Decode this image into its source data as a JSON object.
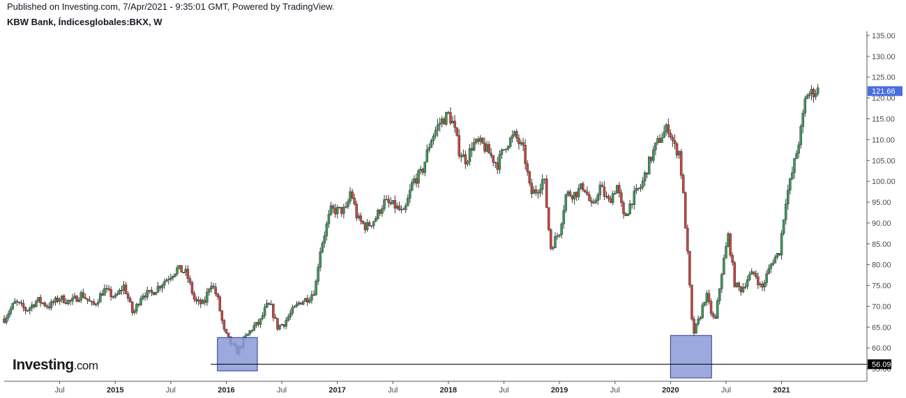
{
  "header": {
    "published": "Published on Investing.com, 7/Apr/2021 - 9:35:01 GMT, Powered by TradingView.",
    "symbol": "KBW Bank, Índicesglobales:BKX, W"
  },
  "logo": {
    "brand": "Investing",
    "domain": ".com"
  },
  "colors": {
    "up": "#3a9a5b",
    "down": "#c9463d",
    "box_fill": "#8a9ad8",
    "box_stroke": "#2b3a8c",
    "last_badge": "#4a6ee0",
    "level_badge": "#000000"
  },
  "chart_data": {
    "type": "candlestick",
    "title": "KBW Bank, Índicesglobales:BKX, W",
    "ylim": [
      52,
      136
    ],
    "y_ticks": [
      "135.00",
      "130.00",
      "125.00",
      "120.00",
      "115.00",
      "110.00",
      "105.00",
      "100.00",
      "95.00",
      "90.00",
      "85.00",
      "80.00",
      "75.00",
      "70.00",
      "65.00",
      "60.00",
      "55.00"
    ],
    "x_ticks": [
      {
        "label": "Jul",
        "t": 2014.5,
        "year": false
      },
      {
        "label": "2015",
        "t": 2015.0,
        "year": true
      },
      {
        "label": "Jul",
        "t": 2015.5,
        "year": false
      },
      {
        "label": "2016",
        "t": 2016.0,
        "year": true
      },
      {
        "label": "Jul",
        "t": 2016.5,
        "year": false
      },
      {
        "label": "2017",
        "t": 2017.0,
        "year": true
      },
      {
        "label": "Jul",
        "t": 2017.5,
        "year": false
      },
      {
        "label": "2018",
        "t": 2018.0,
        "year": true
      },
      {
        "label": "Jul",
        "t": 2018.5,
        "year": false
      },
      {
        "label": "2019",
        "t": 2019.0,
        "year": true
      },
      {
        "label": "Jul",
        "t": 2019.5,
        "year": false
      },
      {
        "label": "2020",
        "t": 2020.0,
        "year": true
      },
      {
        "label": "Jul",
        "t": 2020.5,
        "year": false
      },
      {
        "label": "2021",
        "t": 2021.0,
        "year": true
      }
    ],
    "xlim": [
      2014.0,
      2021.75
    ],
    "series_closes": [
      [
        2014.0,
        67
      ],
      [
        2014.1,
        71
      ],
      [
        2014.2,
        69
      ],
      [
        2014.3,
        71.5
      ],
      [
        2014.4,
        70
      ],
      [
        2014.5,
        72
      ],
      [
        2014.6,
        71
      ],
      [
        2014.7,
        73
      ],
      [
        2014.8,
        70
      ],
      [
        2014.9,
        74
      ],
      [
        2015.0,
        72
      ],
      [
        2015.08,
        75
      ],
      [
        2015.16,
        68
      ],
      [
        2015.24,
        73
      ],
      [
        2015.32,
        73
      ],
      [
        2015.4,
        75
      ],
      [
        2015.48,
        77
      ],
      [
        2015.56,
        79
      ],
      [
        2015.64,
        78
      ],
      [
        2015.72,
        71
      ],
      [
        2015.8,
        70.5
      ],
      [
        2015.86,
        76
      ],
      [
        2015.92,
        72
      ],
      [
        2015.98,
        64
      ],
      [
        2016.04,
        61
      ],
      [
        2016.1,
        59
      ],
      [
        2016.16,
        62
      ],
      [
        2016.24,
        65
      ],
      [
        2016.3,
        66
      ],
      [
        2016.36,
        70
      ],
      [
        2016.4,
        70
      ],
      [
        2016.46,
        65
      ],
      [
        2016.52,
        66
      ],
      [
        2016.6,
        69
      ],
      [
        2016.66,
        71
      ],
      [
        2016.74,
        72
      ],
      [
        2016.8,
        74
      ],
      [
        2016.84,
        83
      ],
      [
        2016.88,
        87
      ],
      [
        2016.94,
        93
      ],
      [
        2017.0,
        93
      ],
      [
        2017.08,
        93
      ],
      [
        2017.12,
        98
      ],
      [
        2017.18,
        91
      ],
      [
        2017.26,
        89
      ],
      [
        2017.34,
        91
      ],
      [
        2017.42,
        95
      ],
      [
        2017.52,
        94
      ],
      [
        2017.6,
        92
      ],
      [
        2017.68,
        100
      ],
      [
        2017.76,
        102
      ],
      [
        2017.84,
        110
      ],
      [
        2017.92,
        114
      ],
      [
        2018.0,
        116
      ],
      [
        2018.04,
        114
      ],
      [
        2018.1,
        107
      ],
      [
        2018.16,
        105
      ],
      [
        2018.22,
        109
      ],
      [
        2018.3,
        109
      ],
      [
        2018.36,
        107
      ],
      [
        2018.44,
        104
      ],
      [
        2018.52,
        109
      ],
      [
        2018.6,
        111
      ],
      [
        2018.68,
        107
      ],
      [
        2018.74,
        97
      ],
      [
        2018.8,
        98
      ],
      [
        2018.86,
        101
      ],
      [
        2018.92,
        84
      ],
      [
        2019.0,
        88
      ],
      [
        2019.06,
        97
      ],
      [
        2019.14,
        97
      ],
      [
        2019.22,
        99
      ],
      [
        2019.3,
        93
      ],
      [
        2019.36,
        99
      ],
      [
        2019.44,
        95
      ],
      [
        2019.52,
        99
      ],
      [
        2019.58,
        91
      ],
      [
        2019.66,
        96
      ],
      [
        2019.74,
        99
      ],
      [
        2019.8,
        104
      ],
      [
        2019.86,
        108
      ],
      [
        2019.92,
        111
      ],
      [
        2019.98,
        113
      ],
      [
        2020.04,
        108
      ],
      [
        2020.08,
        107
      ],
      [
        2020.12,
        95
      ],
      [
        2020.16,
        80
      ],
      [
        2020.2,
        63
      ],
      [
        2020.26,
        67
      ],
      [
        2020.32,
        73
      ],
      [
        2020.36,
        69
      ],
      [
        2020.4,
        66
      ],
      [
        2020.46,
        78
      ],
      [
        2020.52,
        87
      ],
      [
        2020.58,
        75
      ],
      [
        2020.64,
        74
      ],
      [
        2020.7,
        77
      ],
      [
        2020.76,
        78
      ],
      [
        2020.82,
        74
      ],
      [
        2020.86,
        77
      ],
      [
        2020.92,
        81
      ],
      [
        2020.98,
        83
      ],
      [
        2021.04,
        96
      ],
      [
        2021.08,
        100
      ],
      [
        2021.12,
        105
      ],
      [
        2021.18,
        113
      ],
      [
        2021.22,
        121
      ],
      [
        2021.26,
        121
      ],
      [
        2021.32,
        122
      ],
      [
        2021.34,
        121.66
      ]
    ],
    "support_level": {
      "value": 56.09,
      "label": "56.09"
    },
    "last_price": {
      "value": 121.66,
      "label": "121.66"
    },
    "highlight_boxes": [
      {
        "t0": 2015.92,
        "t1": 2016.28,
        "y0": 54.5,
        "y1": 62.5
      },
      {
        "t0": 2020.0,
        "t1": 2020.37,
        "y0": 52.8,
        "y1": 63.0
      }
    ]
  }
}
